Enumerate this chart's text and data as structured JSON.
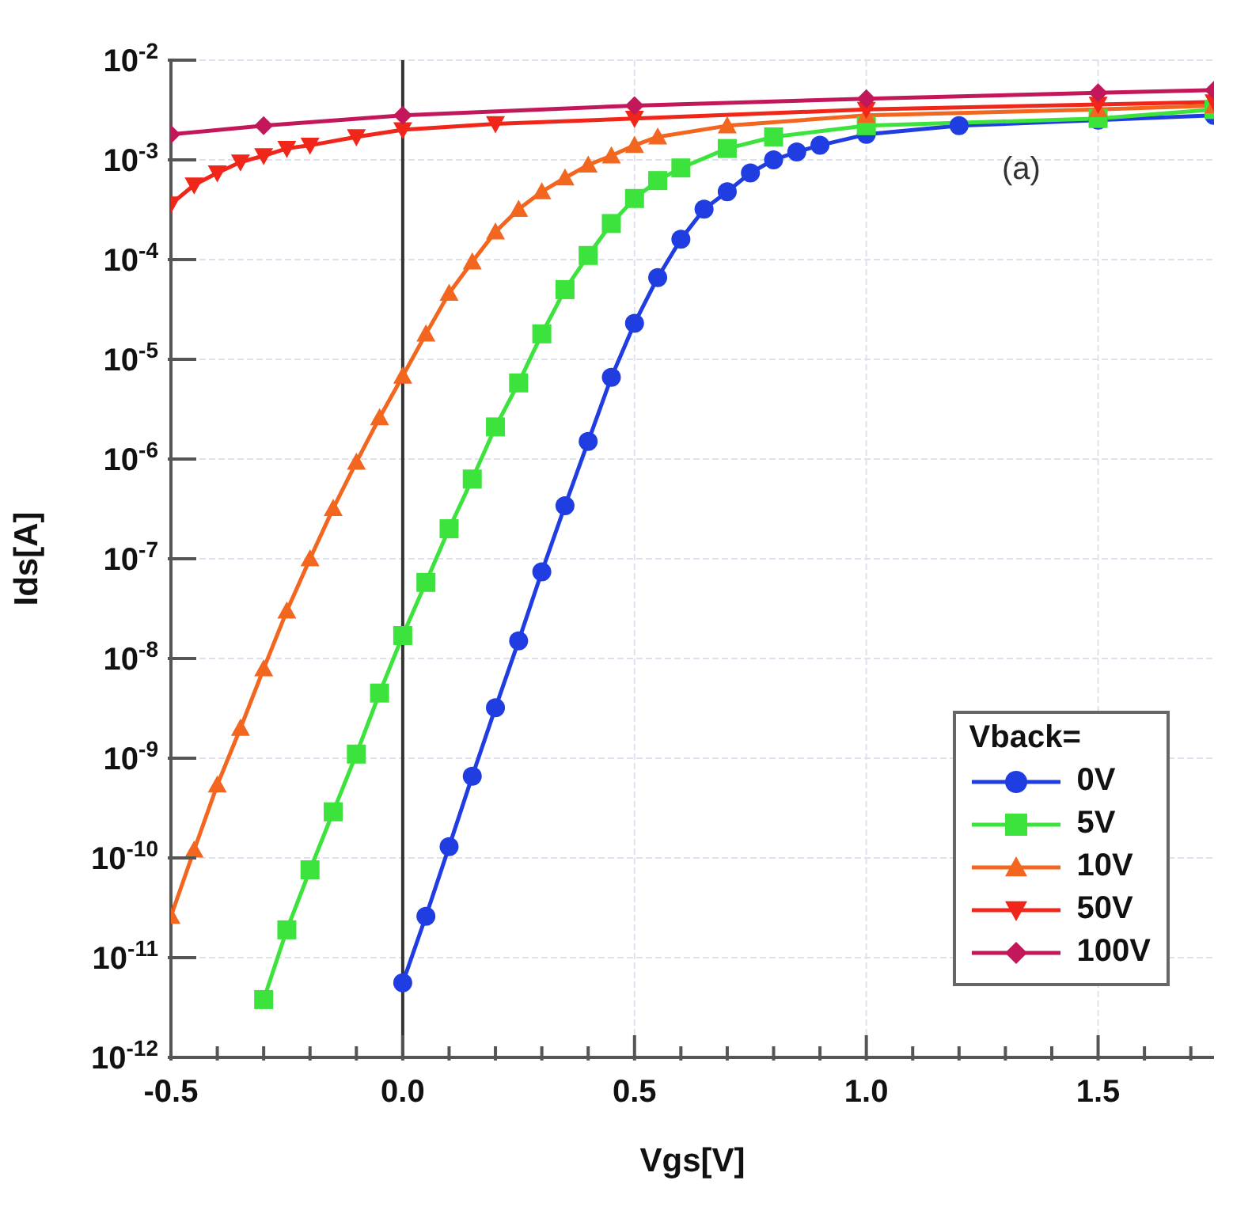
{
  "chart_data": {
    "type": "line",
    "xlabel": "Vgs[V]",
    "ylabel": "Ids[A]",
    "legend_title": "Vback=",
    "legend": "bottom right",
    "grid": true,
    "log": "y",
    "line_style": "solid",
    "xlim": [
      -0.5,
      1.75
    ],
    "xticks": [
      {
        "value": -0.5,
        "label": "-0.5"
      },
      {
        "value": -0.4,
        "label": null
      },
      {
        "value": -0.3,
        "label": null
      },
      {
        "value": -0.2,
        "label": null
      },
      {
        "value": -0.1,
        "label": null
      },
      {
        "value": 0,
        "label": "0.0"
      },
      {
        "value": 0.1,
        "label": null
      },
      {
        "value": 0.2,
        "label": null
      },
      {
        "value": 0.3,
        "label": null
      },
      {
        "value": 0.4,
        "label": null
      },
      {
        "value": 0.5,
        "label": "0.5"
      },
      {
        "value": 0.6,
        "label": null
      },
      {
        "value": 0.7,
        "label": null
      },
      {
        "value": 0.8,
        "label": null
      },
      {
        "value": 0.9,
        "label": null
      },
      {
        "value": 1.0,
        "label": "1.0"
      },
      {
        "value": 1.1,
        "label": null
      },
      {
        "value": 1.2,
        "label": null
      },
      {
        "value": 1.3,
        "label": null
      },
      {
        "value": 1.4,
        "label": null
      },
      {
        "value": 1.5,
        "label": "1.5"
      },
      {
        "value": 1.6,
        "label": null
      },
      {
        "value": 1.7,
        "label": null
      }
    ],
    "ylim": [
      1e-12,
      0.01
    ],
    "yticks": [
      {
        "value": 1e-12,
        "label": "10$^{-12}$"
      },
      {
        "value": 1e-11,
        "label": "10$^{-11}$"
      },
      {
        "value": 1e-10,
        "label": "10$^{-10}$"
      },
      {
        "value": 1e-09,
        "label": "10$^{-9}$"
      },
      {
        "value": 1e-08,
        "label": "10$^{-8}$"
      },
      {
        "value": 1e-07,
        "label": "10$^{-7}$"
      },
      {
        "value": 1e-06,
        "label": "10$^{-6}$"
      },
      {
        "value": 1e-05,
        "label": "10$^{-5}$"
      },
      {
        "value": 0.0001,
        "label": "10$^{-4}$"
      },
      {
        "value": 0.001,
        "label": "10$^{-3}$"
      },
      {
        "value": 0.01,
        "label": "10$^{-2}$"
      }
    ],
    "ref_lines": [
      {
        "axis": "x",
        "value": 0,
        "color": "#333333"
      }
    ],
    "annotations": [
      "(a)"
    ],
    "series": [
      {
        "name": "0V",
        "color": "#1f3de0",
        "marker": "circle",
        "x": [
          0,
          0.05,
          0.1,
          0.15,
          0.2,
          0.25,
          0.3,
          0.35,
          0.4,
          0.45,
          0.5,
          0.55,
          0.6,
          0.65,
          0.7,
          0.75,
          0.8,
          0.85,
          0.9,
          1.0,
          1.2,
          1.5,
          1.75
        ],
        "values": [
          5.6e-12,
          2.6e-11,
          1.3e-10,
          6.6e-10,
          3.2e-09,
          1.5e-08,
          7.4e-08,
          3.4e-07,
          1.5e-06,
          6.6e-06,
          2.3e-05,
          6.6e-05,
          0.00016,
          0.00032,
          0.00048,
          0.00074,
          0.001,
          0.0012,
          0.0014,
          0.0018,
          0.0022,
          0.0025,
          0.0028
        ]
      },
      {
        "name": "5V",
        "color": "#3de33d",
        "marker": "square",
        "x": [
          -0.3,
          -0.25,
          -0.2,
          -0.15,
          -0.1,
          -0.05,
          0,
          0.05,
          0.1,
          0.15,
          0.2,
          0.25,
          0.3,
          0.35,
          0.4,
          0.45,
          0.5,
          0.55,
          0.6,
          0.7,
          0.8,
          1.0,
          1.5,
          1.75
        ],
        "values": [
          3.8e-12,
          1.9e-11,
          7.6e-11,
          2.9e-10,
          1.1e-09,
          4.5e-09,
          1.7e-08,
          5.8e-08,
          2e-07,
          6.3e-07,
          2.1e-06,
          5.8e-06,
          1.8e-05,
          5e-05,
          0.00011,
          0.00023,
          0.00041,
          0.00062,
          0.00083,
          0.0013,
          0.0017,
          0.0022,
          0.0026,
          0.0032
        ]
      },
      {
        "name": "10V",
        "color": "#f2661f",
        "marker": "triangle",
        "x": [
          -0.5,
          -0.45,
          -0.4,
          -0.35,
          -0.3,
          -0.25,
          -0.2,
          -0.15,
          -0.1,
          -0.05,
          0,
          0.05,
          0.1,
          0.15,
          0.2,
          0.25,
          0.3,
          0.35,
          0.4,
          0.45,
          0.5,
          0.55,
          0.7,
          1.0,
          1.5,
          1.75
        ],
        "values": [
          2.6e-11,
          1.2e-10,
          5.4e-10,
          2e-09,
          7.9e-09,
          3e-08,
          1e-07,
          3.2e-07,
          9.3e-07,
          2.6e-06,
          6.8e-06,
          1.8e-05,
          4.6e-05,
          9.5e-05,
          0.00019,
          0.00032,
          0.00048,
          0.00066,
          0.00089,
          0.0011,
          0.0014,
          0.0017,
          0.0022,
          0.0028,
          0.0032,
          0.0035
        ]
      },
      {
        "name": "50V",
        "color": "#f0261a",
        "marker": "triangle-down",
        "x": [
          -0.5,
          -0.45,
          -0.4,
          -0.35,
          -0.3,
          -0.25,
          -0.2,
          -0.1,
          0,
          0.2,
          0.5,
          1.0,
          1.5,
          1.75
        ],
        "values": [
          0.00036,
          0.00056,
          0.00074,
          0.00095,
          0.0011,
          0.0013,
          0.0014,
          0.0017,
          0.002,
          0.0023,
          0.0026,
          0.0032,
          0.0036,
          0.0038
        ]
      },
      {
        "name": "100V",
        "color": "#c2185b",
        "marker": "diamond",
        "x": [
          -0.5,
          -0.3,
          0,
          0.5,
          1.0,
          1.5,
          1.75
        ],
        "values": [
          0.0018,
          0.0022,
          0.0028,
          0.0035,
          0.0041,
          0.0047,
          0.005
        ]
      }
    ]
  }
}
